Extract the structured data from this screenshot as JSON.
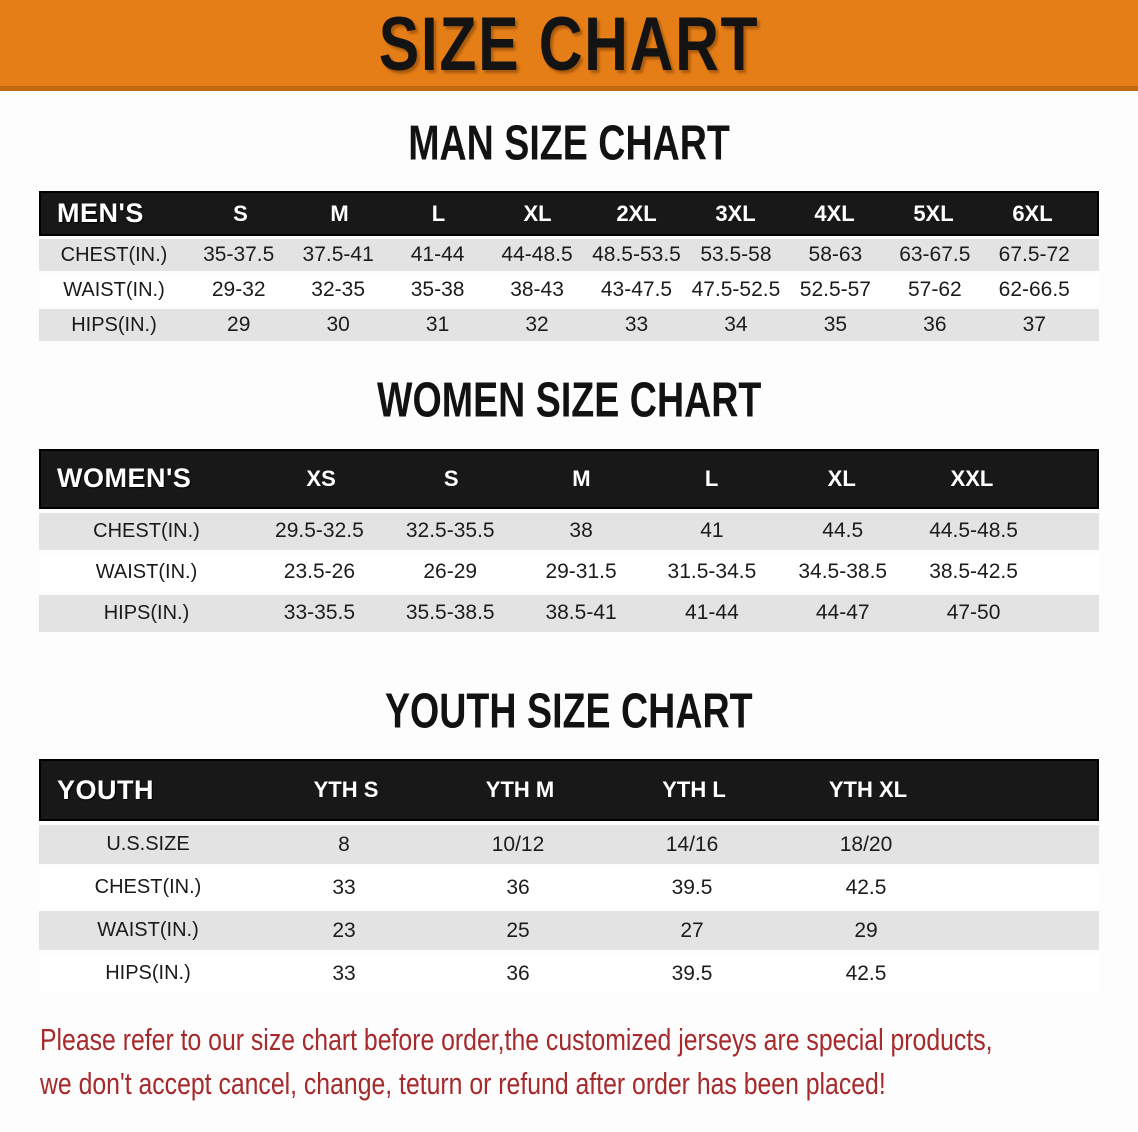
{
  "banner": {
    "title": "SIZE CHART"
  },
  "tables": {
    "men": {
      "heading": "MAN SIZE CHART",
      "header": [
        "MEN'S",
        "S",
        "M",
        "L",
        "XL",
        "2XL",
        "3XL",
        "4XL",
        "5XL",
        "6XL"
      ],
      "rows": [
        [
          "CHEST(IN.)",
          "35-37.5",
          "37.5-41",
          "41-44",
          "44-48.5",
          "48.5-53.5",
          "53.5-58",
          "58-63",
          "63-67.5",
          "67.5-72"
        ],
        [
          "WAIST(IN.)",
          "29-32",
          "32-35",
          "35-38",
          "38-43",
          "43-47.5",
          "47.5-52.5",
          "52.5-57",
          "57-62",
          "62-66.5"
        ],
        [
          "HIPS(IN.)",
          "29",
          "30",
          "31",
          "32",
          "33",
          "34",
          "35",
          "36",
          "37"
        ]
      ]
    },
    "women": {
      "heading": "WOMEN SIZE CHART",
      "header": [
        "WOMEN'S",
        "XS",
        "S",
        "M",
        "L",
        "XL",
        "XXL"
      ],
      "rows": [
        [
          "CHEST(IN.)",
          "29.5-32.5",
          "32.5-35.5",
          "38",
          "41",
          "44.5",
          "44.5-48.5"
        ],
        [
          "WAIST(IN.)",
          "23.5-26",
          "26-29",
          "29-31.5",
          "31.5-34.5",
          "34.5-38.5",
          "38.5-42.5"
        ],
        [
          "HIPS(IN.)",
          "33-35.5",
          "35.5-38.5",
          "38.5-41",
          "41-44",
          "44-47",
          "47-50"
        ]
      ]
    },
    "youth": {
      "heading": "YOUTH SIZE CHART",
      "header": [
        "YOUTH",
        "YTH S",
        "YTH M",
        "YTH L",
        "YTH XL"
      ],
      "rows": [
        [
          "U.S.SIZE",
          "8",
          "10/12",
          "14/16",
          "18/20"
        ],
        [
          "CHEST(IN.)",
          "33",
          "36",
          "39.5",
          "42.5"
        ],
        [
          "WAIST(IN.)",
          "23",
          "25",
          "27",
          "29"
        ],
        [
          "HIPS(IN.)",
          "33",
          "36",
          "39.5",
          "42.5"
        ]
      ]
    }
  },
  "disclaimer": {
    "line1": "Please refer to our size chart before order,the customized jerseys are special products,",
    "line2": "we don't accept cancel, change, teturn or refund after order has been placed!"
  },
  "colors": {
    "banner_orange": "#E67E17",
    "header_black": "#181818",
    "row_gray": "#E3E3E3",
    "disclaimer_red": "#A62A2C"
  }
}
